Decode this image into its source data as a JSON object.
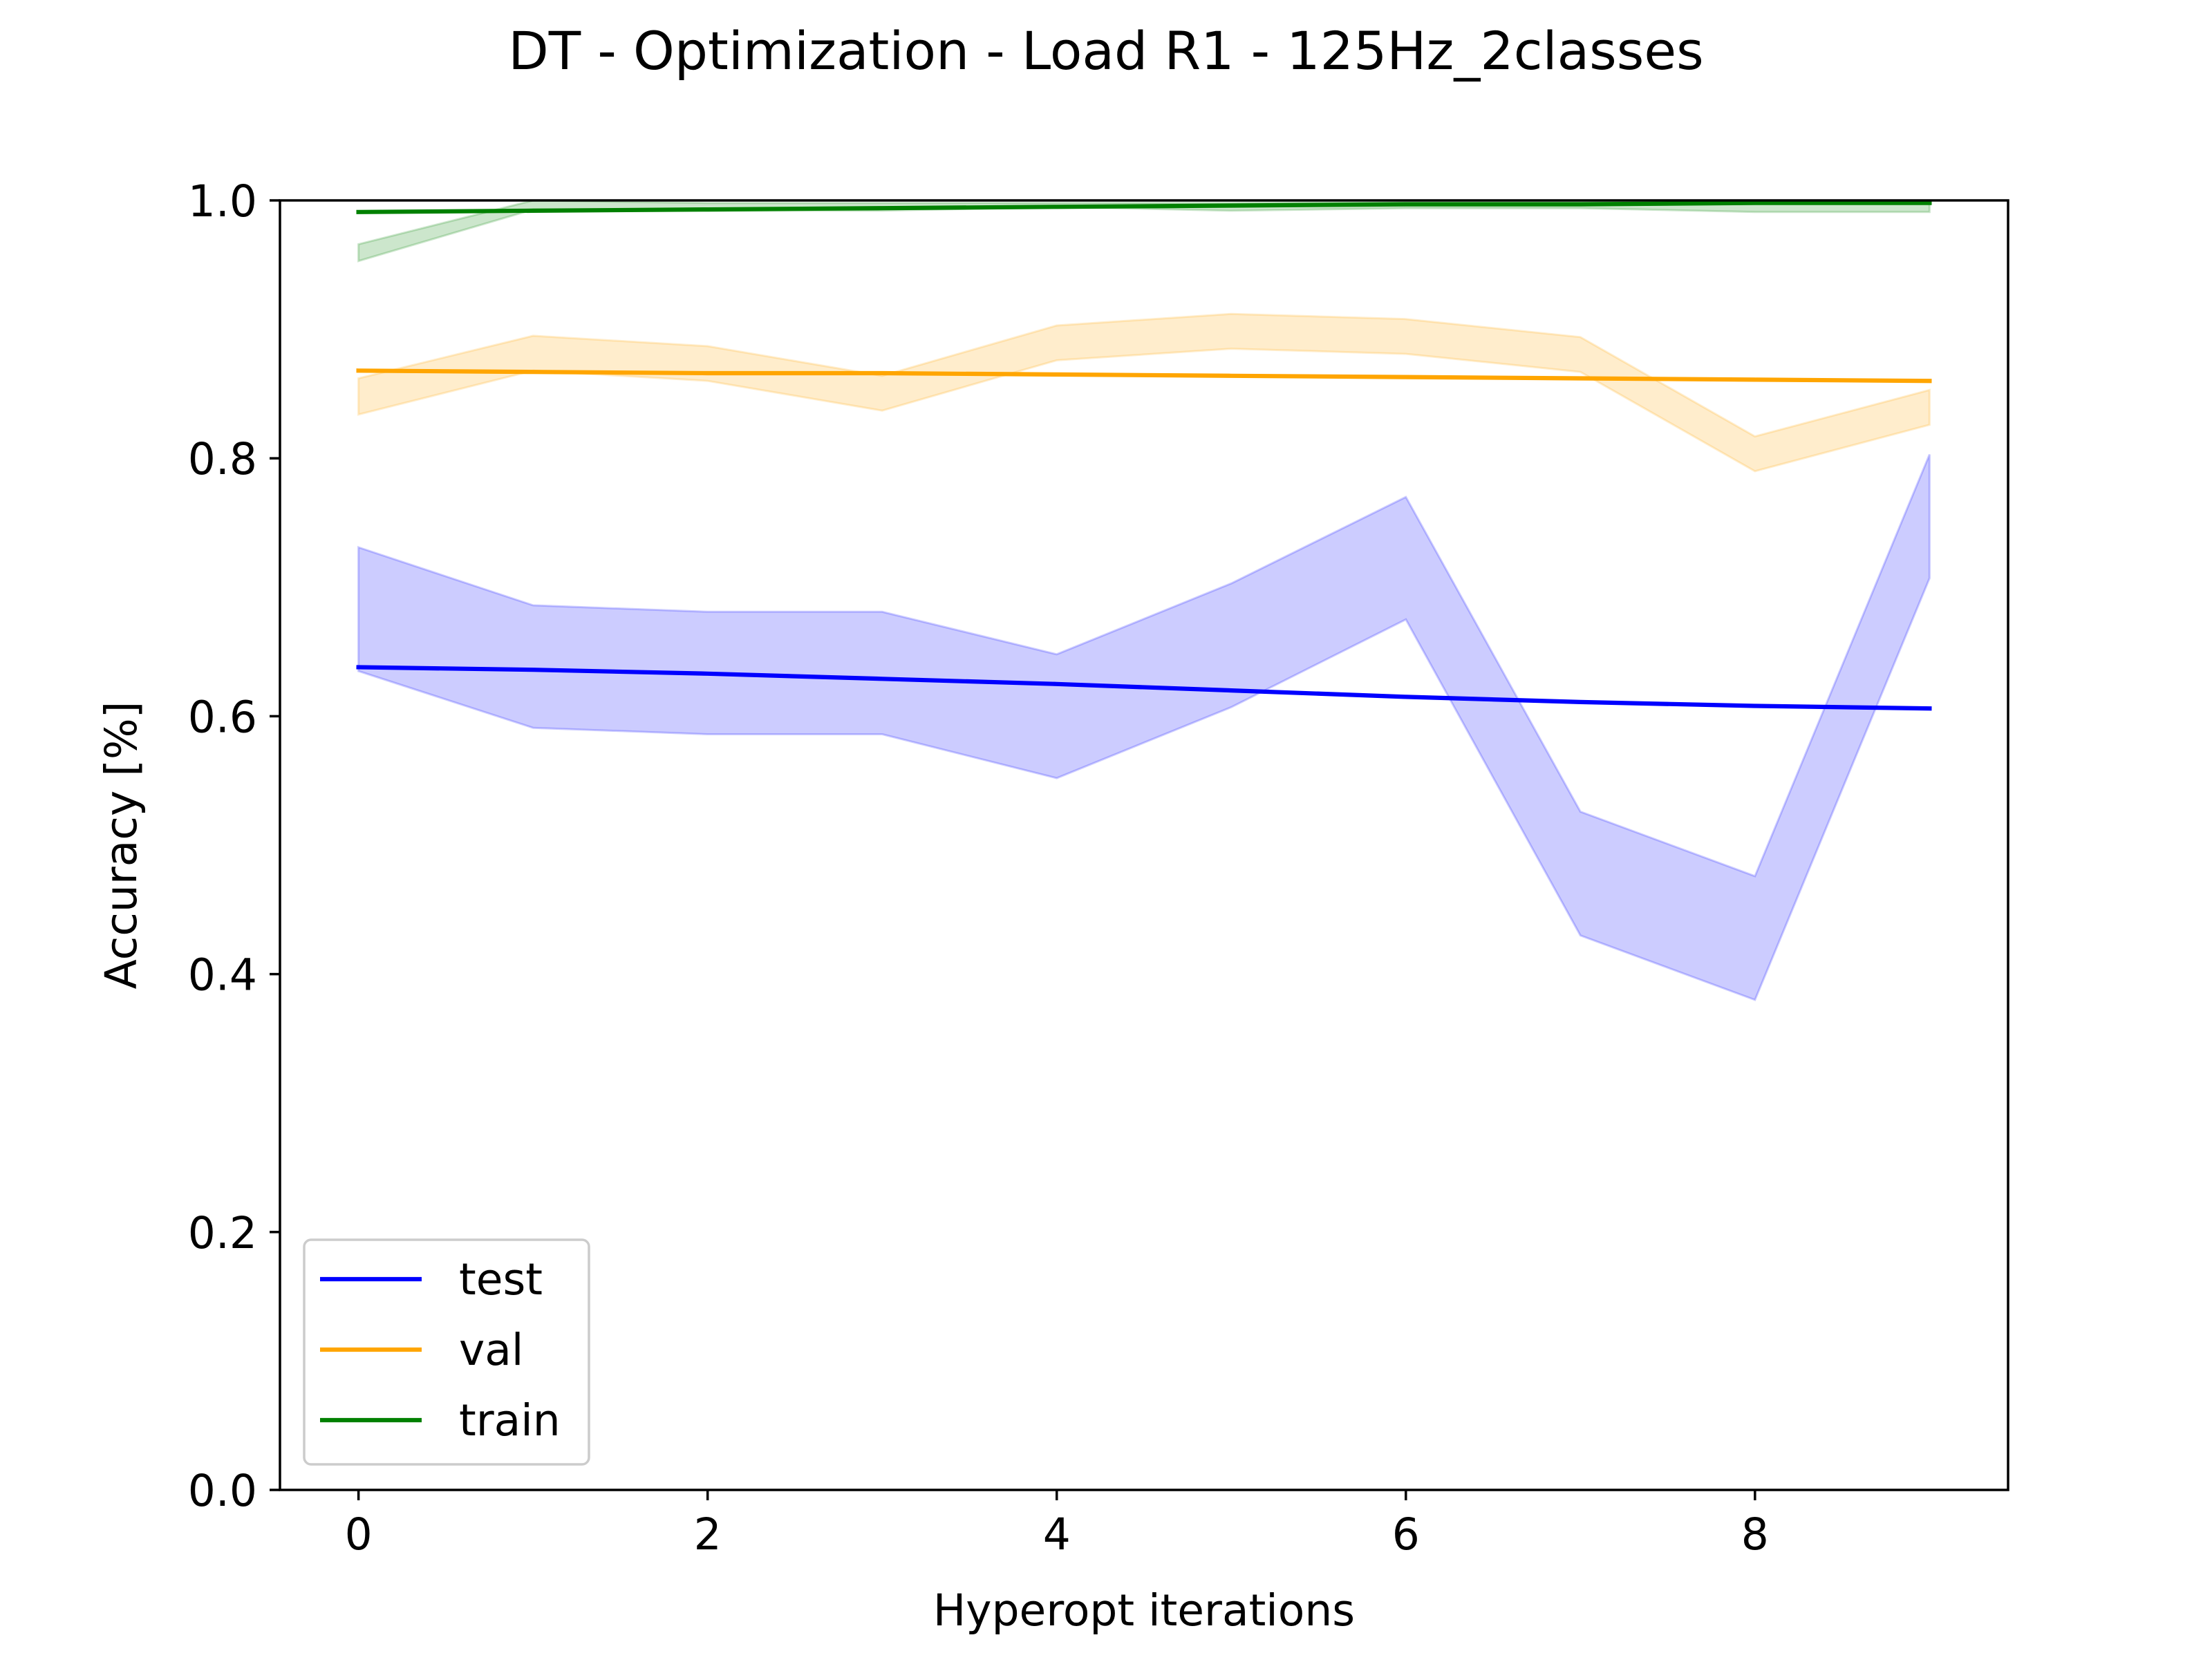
{
  "chart_data": {
    "type": "line",
    "title": "DT - Optimization - Load R1 - 125Hz_2classes",
    "xlabel": "Hyperopt iterations",
    "ylabel": "Accuracy [%]",
    "xlim": [
      -0.45,
      9.45
    ],
    "ylim": [
      0.0,
      1.0
    ],
    "x": [
      0,
      1,
      2,
      3,
      4,
      5,
      6,
      7,
      8,
      9
    ],
    "x_ticks": [
      0,
      2,
      4,
      6,
      8
    ],
    "x_tick_labels": [
      "0",
      "2",
      "4",
      "6",
      "8"
    ],
    "y_ticks": [
      0.0,
      0.2,
      0.4,
      0.6,
      0.8,
      1.0
    ],
    "y_tick_labels": [
      "0.0",
      "0.2",
      "0.4",
      "0.6",
      "0.8",
      "1.0"
    ],
    "grid": false,
    "legend_position": "lower-left",
    "series": [
      {
        "name": "test",
        "color": "#0000ff",
        "values": [
          0.638,
          0.636,
          0.633,
          0.629,
          0.625,
          0.62,
          0.615,
          0.611,
          0.608,
          0.606
        ],
        "band_upper": [
          0.731,
          0.686,
          0.681,
          0.681,
          0.648,
          0.703,
          0.77,
          0.526,
          0.476,
          0.803
        ],
        "band_lower": [
          0.635,
          0.591,
          0.586,
          0.586,
          0.552,
          0.607,
          0.675,
          0.43,
          0.38,
          0.707
        ]
      },
      {
        "name": "val",
        "color": "#ffa500",
        "values": [
          0.868,
          0.867,
          0.866,
          0.866,
          0.865,
          0.864,
          0.863,
          0.862,
          0.861,
          0.86
        ],
        "band_upper": [
          0.862,
          0.895,
          0.887,
          0.864,
          0.903,
          0.912,
          0.908,
          0.894,
          0.817,
          0.853
        ],
        "band_lower": [
          0.834,
          0.868,
          0.86,
          0.837,
          0.876,
          0.885,
          0.881,
          0.867,
          0.79,
          0.826
        ]
      },
      {
        "name": "train",
        "color": "#008000",
        "values": [
          0.991,
          0.992,
          0.993,
          0.994,
          0.995,
          0.996,
          0.997,
          0.997,
          0.998,
          0.998
        ],
        "band_upper": [
          0.966,
          1.0,
          0.998,
          0.998,
          0.998,
          0.998,
          0.999,
          0.999,
          0.999,
          0.999
        ],
        "band_lower": [
          0.953,
          0.993,
          0.992,
          0.992,
          0.995,
          0.992,
          0.994,
          0.994,
          0.991,
          0.991
        ]
      }
    ]
  }
}
